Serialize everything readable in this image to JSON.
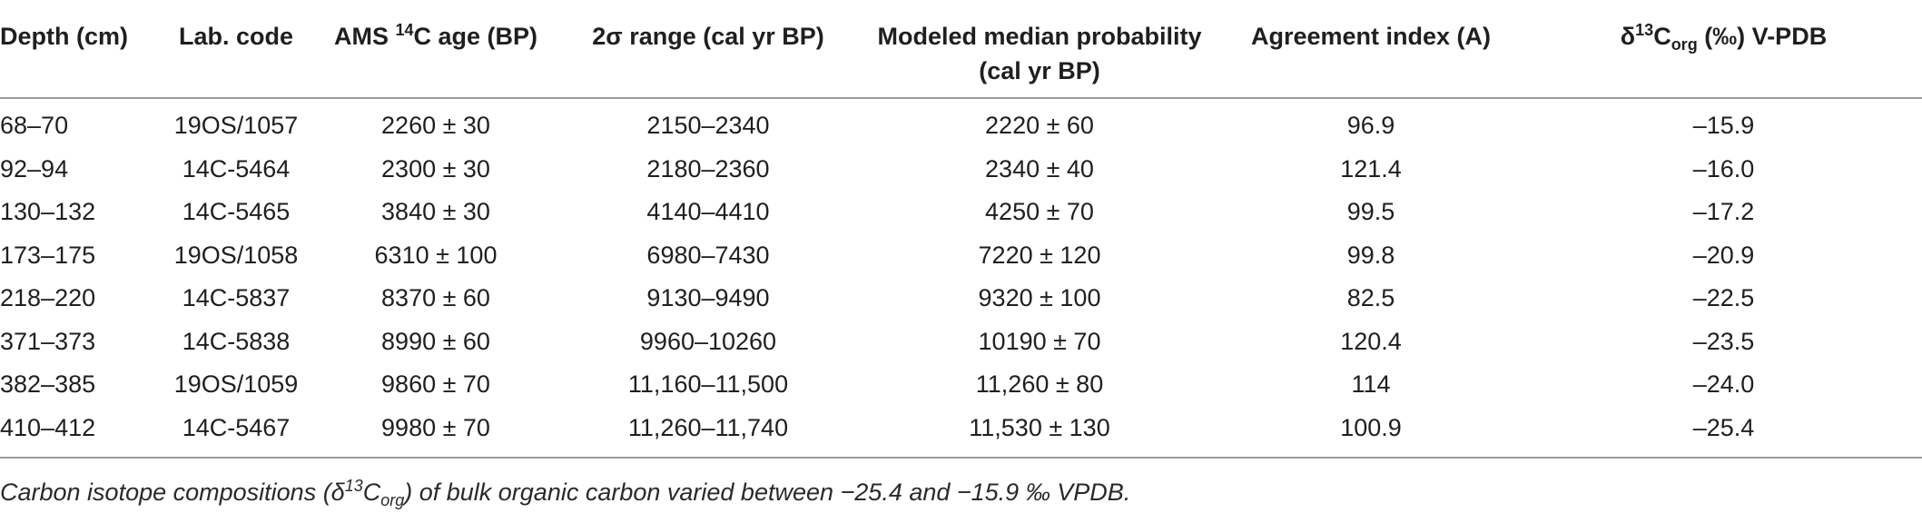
{
  "headers": {
    "depth": "Depth (cm)",
    "lab_code": "Lab. code",
    "ams_pre": "AMS ",
    "ams_sup": "14",
    "ams_post": "C age (BP)",
    "range": "2σ range (cal yr BP)",
    "median_line1": "Modeled median probability",
    "median_line2": "(cal yr BP)",
    "agreement": "Agreement index (A)",
    "delta_pre": "δ",
    "delta_sup": "13",
    "delta_c": "C",
    "delta_sub": "org",
    "delta_post": " (‰) V-PDB"
  },
  "rows": [
    {
      "depth": "68–70",
      "lab": "19OS/1057",
      "ams": "2260 ± 30",
      "range": "2150–2340",
      "median": "2220 ± 60",
      "agreement": "96.9",
      "delta": "–15.9"
    },
    {
      "depth": "92–94",
      "lab": "14C-5464",
      "ams": "2300 ± 30",
      "range": "2180–2360",
      "median": "2340 ± 40",
      "agreement": "121.4",
      "delta": "–16.0"
    },
    {
      "depth": "130–132",
      "lab": "14C-5465",
      "ams": "3840 ± 30",
      "range": "4140–4410",
      "median": "4250 ± 70",
      "agreement": "99.5",
      "delta": "–17.2"
    },
    {
      "depth": "173–175",
      "lab": "19OS/1058",
      "ams": "6310 ± 100",
      "range": "6980–7430",
      "median": "7220 ± 120",
      "agreement": "99.8",
      "delta": "–20.9"
    },
    {
      "depth": "218–220",
      "lab": "14C-5837",
      "ams": "8370 ± 60",
      "range": "9130–9490",
      "median": "9320 ± 100",
      "agreement": "82.5",
      "delta": "–22.5"
    },
    {
      "depth": "371–373",
      "lab": "14C-5838",
      "ams": "8990 ± 60",
      "range": "9960–10260",
      "median": "10190 ± 70",
      "agreement": "120.4",
      "delta": "–23.5"
    },
    {
      "depth": "382–385",
      "lab": "19OS/1059",
      "ams": "9860 ± 70",
      "range": "11,160–11,500",
      "median": "11,260 ± 80",
      "agreement": "114",
      "delta": "–24.0"
    },
    {
      "depth": "410–412",
      "lab": "14C-5467",
      "ams": "9980 ± 70",
      "range": "11,260–11,740",
      "median": "11,530 ± 130",
      "agreement": "100.9",
      "delta": "–25.4"
    }
  ],
  "caption": {
    "pre": "Carbon isotope compositions (δ",
    "sup": "13",
    "c": "C",
    "sub": "org",
    "post": ") of bulk organic carbon varied between −25.4 and −15.9 ‰ VPDB."
  }
}
